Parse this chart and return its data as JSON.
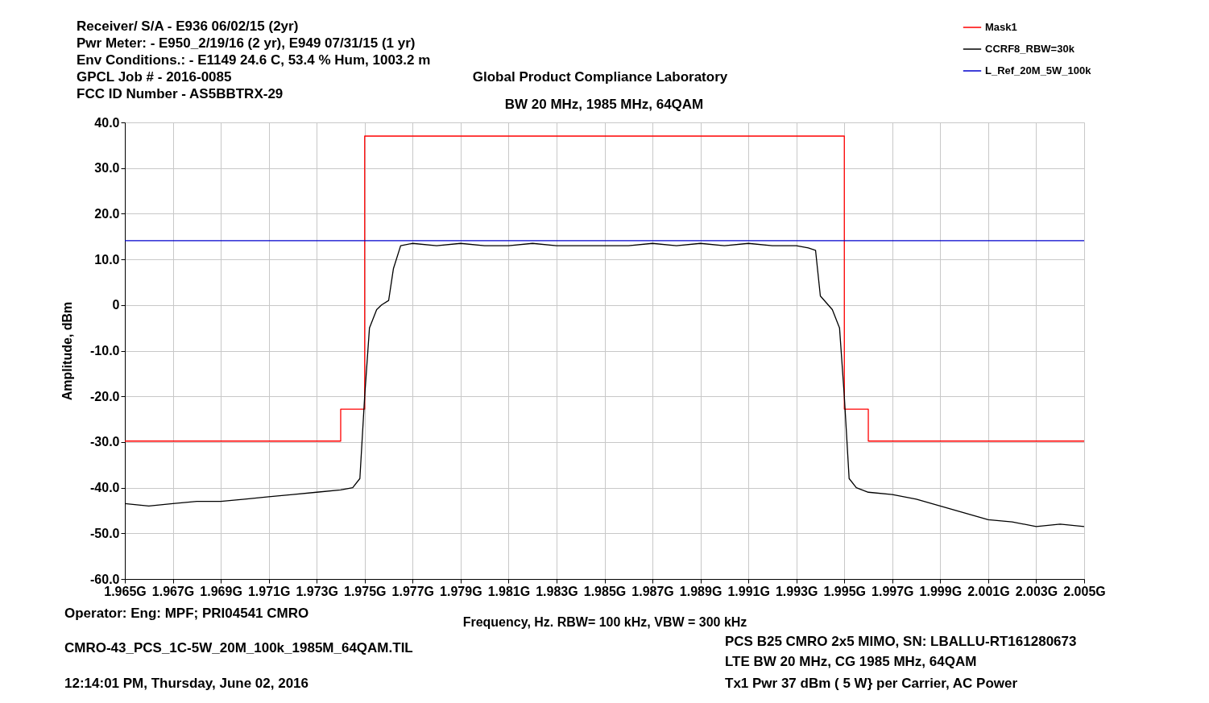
{
  "chart_data": {
    "type": "line",
    "title": "BW 20 MHz, 1985 MHz, 64QAM",
    "xlabel": "Frequency, Hz.   RBW= 100 kHz,  VBW = 300 kHz",
    "ylabel": "Amplitude, dBm",
    "xlim": [
      1.965,
      2.005
    ],
    "xticks": [
      {
        "value": 1.965,
        "label": "1.965G"
      },
      {
        "value": 1.967,
        "label": "1.967G"
      },
      {
        "value": 1.969,
        "label": "1.969G"
      },
      {
        "value": 1.971,
        "label": "1.971G"
      },
      {
        "value": 1.973,
        "label": "1.973G"
      },
      {
        "value": 1.975,
        "label": "1.975G"
      },
      {
        "value": 1.977,
        "label": "1.977G"
      },
      {
        "value": 1.979,
        "label": "1.979G"
      },
      {
        "value": 1.981,
        "label": "1.981G"
      },
      {
        "value": 1.983,
        "label": "1.983G"
      },
      {
        "value": 1.985,
        "label": "1.985G"
      },
      {
        "value": 1.987,
        "label": "1.987G"
      },
      {
        "value": 1.989,
        "label": "1.989G"
      },
      {
        "value": 1.991,
        "label": "1.991G"
      },
      {
        "value": 1.993,
        "label": "1.993G"
      },
      {
        "value": 1.995,
        "label": "1.995G"
      },
      {
        "value": 1.997,
        "label": "1.997G"
      },
      {
        "value": 1.999,
        "label": "1.999G"
      },
      {
        "value": 2.001,
        "label": "2.001G"
      },
      {
        "value": 2.003,
        "label": "2.003G"
      },
      {
        "value": 2.005,
        "label": "2.005G"
      }
    ],
    "ylim": [
      -60,
      40
    ],
    "yticks": [
      {
        "value": 40,
        "label": "40.0"
      },
      {
        "value": 30,
        "label": "30.0"
      },
      {
        "value": 20,
        "label": "20.0"
      },
      {
        "value": 10,
        "label": "10.0"
      },
      0,
      {
        "value": -10,
        "label": "-10.0"
      },
      {
        "value": -20,
        "label": "-20.0"
      },
      {
        "value": -30,
        "label": "-30.0"
      },
      {
        "value": -40,
        "label": "-40.0"
      },
      {
        "value": -50,
        "label": "-50.0"
      },
      {
        "value": -60,
        "label": "-60.0"
      }
    ],
    "grid": true,
    "legend": "top right",
    "marker": "none",
    "line_style": "solid",
    "series": [
      {
        "name": "Mask1",
        "color": "#ff0000",
        "type": "step",
        "x": [
          1.965,
          1.974,
          1.975,
          1.995,
          1.996,
          2.005
        ],
        "values": [
          -29.8,
          -22.8,
          37,
          -22.8,
          -29.8,
          -29.8
        ]
      },
      {
        "name": "CCRF8_RBW=30k",
        "color": "#000000",
        "type": "line",
        "x": [
          1.965,
          1.966,
          1.967,
          1.968,
          1.969,
          1.97,
          1.971,
          1.972,
          1.973,
          1.974,
          1.9745,
          1.9748,
          1.975,
          1.9752,
          1.9755,
          1.9757,
          1.976,
          1.9762,
          1.9765,
          1.977,
          1.978,
          1.979,
          1.98,
          1.981,
          1.982,
          1.983,
          1.984,
          1.985,
          1.986,
          1.987,
          1.988,
          1.989,
          1.99,
          1.991,
          1.992,
          1.993,
          1.9935,
          1.9938,
          1.994,
          1.9945,
          1.9948,
          1.995,
          1.9952,
          1.9955,
          1.996,
          1.997,
          1.998,
          1.999,
          2.0,
          2.001,
          2.002,
          2.003,
          2.004,
          2.005
        ],
        "values": [
          -43.5,
          -44,
          -43.5,
          -43,
          -43,
          -42.5,
          -42,
          -41.5,
          -41,
          -40.5,
          -40,
          -38,
          -20,
          -5,
          -1,
          0,
          1,
          8,
          13,
          13.5,
          13,
          13.5,
          13,
          13,
          13.5,
          13,
          13,
          13,
          13,
          13.5,
          13,
          13.5,
          13,
          13.5,
          13,
          13,
          12.5,
          12,
          2,
          -1,
          -5,
          -20,
          -38,
          -40,
          -41,
          -41.5,
          -42.5,
          -44,
          -45.5,
          -47,
          -47.5,
          -48.5,
          -48,
          -48.5
        ]
      },
      {
        "name": "L_Ref_20M_5W_100k",
        "color": "#0000cc",
        "type": "line",
        "x": [
          1.965,
          2.005
        ],
        "values": [
          14.1,
          14.1
        ]
      }
    ],
    "annotations": [
      "Receiver/ S/A - E936 06/02/15 (2yr)",
      "Pwr Meter: - E950_2/19/16 (2 yr), E949 07/31/15 (1 yr)",
      "Env Conditions.: - E1149 24.6 C, 53.4 % Hum,  1003.2 m",
      "GPCL Job #  - 2016-0085",
      "FCC ID Number - AS5BBTRX-29",
      "Global Product Compliance Laboratory",
      "Operator:  Eng: MPF; PRI04541 CMRO",
      "CMRO-43_PCS_1C-5W_20M_100k_1985M_64QAM.TIL",
      "12:14:01 PM, Thursday, June 02, 2016",
      "PCS B25 CMRO 2x5 MIMO, SN: LBALLU-RT161280673",
      "LTE BW 20 MHz, CG 1985 MHz, 64QAM",
      "Tx1  Pwr 37 dBm ( 5 W} per Carrier, AC Power"
    ]
  }
}
